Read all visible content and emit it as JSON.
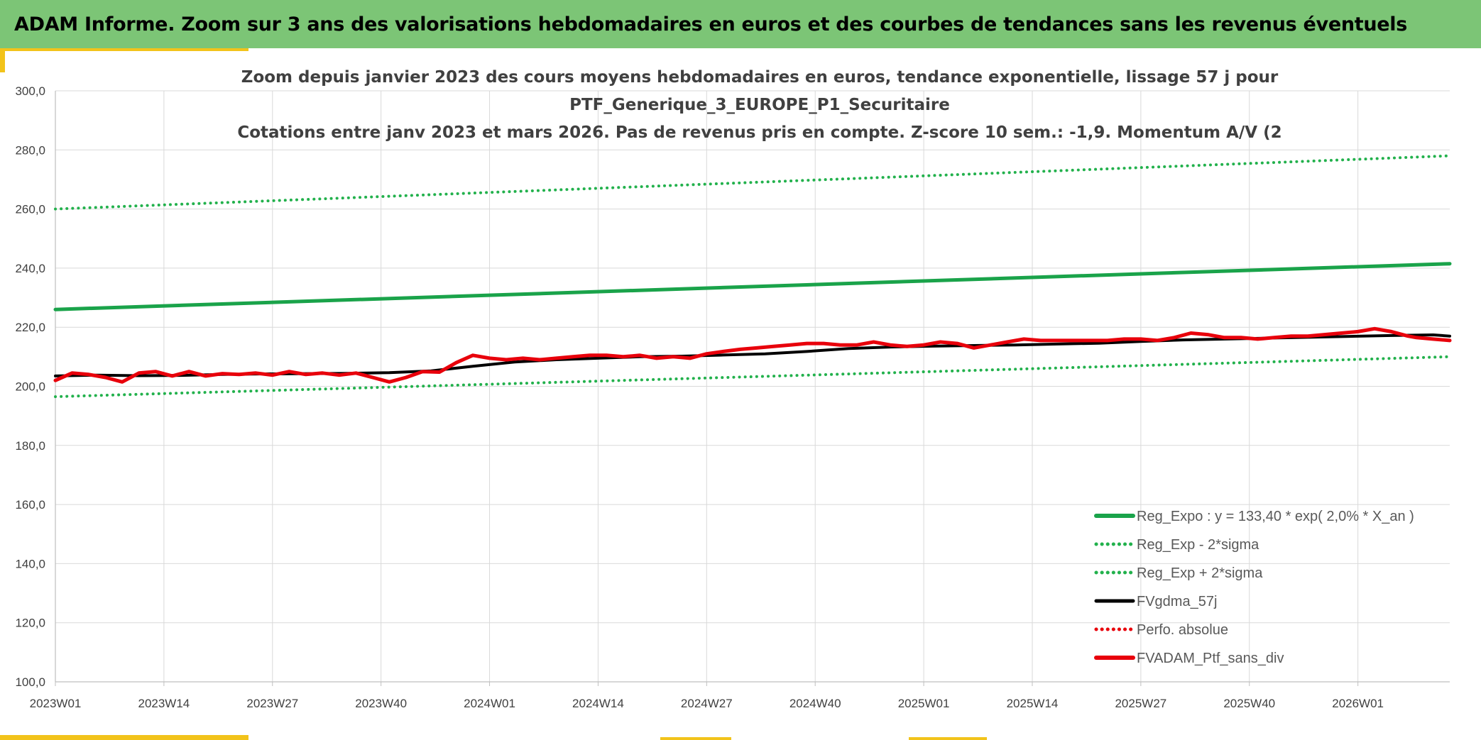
{
  "header": {
    "title": "ADAM Informe. Zoom sur 3 ans des valorisations hebdomadaires en euros et des courbes de tendances sans les revenus éventuels"
  },
  "colors": {
    "banner": "#7cc576",
    "accent": "#f2c31a",
    "reg_expo": "#1aa34a",
    "sigma": "#22b14c",
    "mm": "#000000",
    "perf": "#e8000b"
  },
  "chart_data": {
    "type": "line",
    "title_lines": [
      "Zoom depuis janvier 2023 des cours moyens hebdomadaires en euros, tendance exponentielle, lissage 57 j pour",
      "PTF_Generique_3_EUROPE_P1_Securitaire",
      "Cotations entre janv 2023 et mars 2026. Pas de revenus pris en compte. Z-score 10 sem.: -1,9. Momentum A/V (2"
    ],
    "x_ticks": [
      "2023W01",
      "2023W14",
      "2023W27",
      "2023W40",
      "2024W01",
      "2024W14",
      "2024W27",
      "2024W40",
      "2025W01",
      "2025W14",
      "2025W27",
      "2025W40",
      "2026W01"
    ],
    "weeks_per_tick": 13,
    "n_weeks": 168,
    "y_ticks": [
      "300,0",
      "280,0",
      "260,0",
      "240,0",
      "220,0",
      "200,0",
      "180,0",
      "160,0",
      "140,0",
      "120,0",
      "100,0"
    ],
    "ylim": [
      100,
      300
    ],
    "grid": true,
    "legend_position": "bottom-right",
    "series": [
      {
        "name": "Reg_Expo : y = 133,40 * exp( 2,0% *  X_an )",
        "style": "solid-thick",
        "color": "#1aa34a",
        "x": [
          0,
          167
        ],
        "y": [
          226.0,
          241.5
        ]
      },
      {
        "name": "Reg_Exp - 2*sigma",
        "style": "dotted",
        "color": "#22b14c",
        "x": [
          0,
          167
        ],
        "y": [
          196.5,
          210.0
        ]
      },
      {
        "name": "Reg_Exp + 2*sigma",
        "style": "dotted",
        "color": "#22b14c",
        "x": [
          0,
          167
        ],
        "y": [
          260.0,
          278.0
        ]
      },
      {
        "name": "FVgdma_57j",
        "style": "solid",
        "color": "#000000",
        "x": [
          0,
          5,
          10,
          15,
          20,
          25,
          30,
          35,
          40,
          45,
          50,
          55,
          60,
          65,
          70,
          75,
          80,
          85,
          90,
          95,
          100,
          105,
          110,
          115,
          120,
          125,
          130,
          135,
          140,
          145,
          150,
          155,
          160,
          165,
          167
        ],
        "y": [
          203.5,
          203.8,
          203.6,
          203.7,
          204.0,
          204.2,
          204.3,
          204.4,
          204.6,
          205.2,
          206.8,
          208.2,
          209.0,
          209.5,
          210.0,
          210.2,
          210.6,
          211.0,
          211.8,
          212.8,
          213.3,
          213.6,
          213.8,
          214.0,
          214.3,
          214.6,
          215.2,
          215.7,
          216.0,
          216.3,
          216.6,
          216.9,
          217.2,
          217.4,
          217.0
        ]
      },
      {
        "name": "Perfo. absolue",
        "style": "dotted",
        "color": "#e8000b",
        "x": [],
        "y": []
      },
      {
        "name": "FVADAM_Ptf_sans_div",
        "style": "solid-thick",
        "color": "#e8000b",
        "x": [
          0,
          2,
          4,
          6,
          8,
          10,
          12,
          14,
          16,
          18,
          20,
          22,
          24,
          26,
          28,
          30,
          32,
          34,
          36,
          38,
          40,
          42,
          44,
          46,
          48,
          50,
          52,
          54,
          56,
          58,
          60,
          62,
          64,
          66,
          68,
          70,
          72,
          74,
          76,
          78,
          80,
          82,
          84,
          86,
          88,
          90,
          92,
          94,
          96,
          98,
          100,
          102,
          104,
          106,
          108,
          110,
          112,
          114,
          116,
          118,
          120,
          122,
          124,
          126,
          128,
          130,
          132,
          134,
          136,
          138,
          140,
          142,
          144,
          146,
          148,
          150,
          152,
          154,
          156,
          158,
          160,
          162,
          163,
          165,
          167
        ],
        "y": [
          202.0,
          204.5,
          204.0,
          203.0,
          201.5,
          204.5,
          205.0,
          203.5,
          205.0,
          203.5,
          204.3,
          204.0,
          204.5,
          203.8,
          205.0,
          204.0,
          204.5,
          203.8,
          204.5,
          203.0,
          201.5,
          203.0,
          205.0,
          204.8,
          208.0,
          210.5,
          209.5,
          209.0,
          209.5,
          209.0,
          209.5,
          210.0,
          210.5,
          210.5,
          210.0,
          210.5,
          209.5,
          210.0,
          209.5,
          211.0,
          211.8,
          212.5,
          213.0,
          213.5,
          214.0,
          214.5,
          214.5,
          214.0,
          214.0,
          215.0,
          214.0,
          213.5,
          214.0,
          215.0,
          214.5,
          213.0,
          214.0,
          215.0,
          216.0,
          215.5,
          215.5,
          215.5,
          215.5,
          215.5,
          216.0,
          216.0,
          215.5,
          216.5,
          218.0,
          217.5,
          216.5,
          216.5,
          216.0,
          216.5,
          217.0,
          217.0,
          217.5,
          218.0,
          218.5,
          219.5,
          218.5,
          217.0,
          216.5,
          216.0,
          215.5
        ]
      }
    ]
  }
}
